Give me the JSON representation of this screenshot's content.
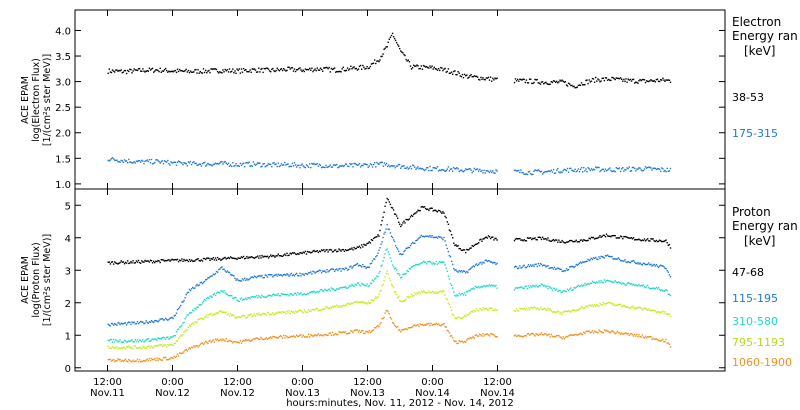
{
  "chart_data": [
    {
      "type": "scatter",
      "panel": "electron",
      "ylabel_lines": [
        "ACE EPAM",
        "log(Electron Flux)",
        "[1/(cm²s ster MeV)]"
      ],
      "legend_title_lines": [
        "Electron",
        "Energy ran",
        "[keV]"
      ],
      "ylim": [
        0.9,
        4.4
      ],
      "yticks": [
        "1.0",
        "1.5",
        "2.0",
        "2.5",
        "3.0",
        "3.5",
        "4.0"
      ],
      "ytick_values": [
        1.0,
        1.5,
        2.0,
        2.5,
        3.0,
        3.5,
        4.0
      ],
      "series": [
        {
          "name": "38-53",
          "color": "#000000",
          "x": [
            0,
            3,
            6,
            9,
            12,
            15,
            18,
            21,
            24,
            27,
            30,
            33,
            36,
            39,
            42,
            45,
            48,
            50,
            51.5,
            52.5,
            54,
            56,
            60,
            63,
            66,
            70,
            72,
            73.5,
            75,
            78,
            81,
            84,
            86,
            88,
            90,
            93,
            96,
            99,
            102,
            104
          ],
          "y": [
            3.22,
            3.21,
            3.23,
            3.24,
            3.22,
            3.21,
            3.22,
            3.23,
            3.22,
            3.24,
            3.23,
            3.25,
            3.24,
            3.26,
            3.24,
            3.27,
            3.3,
            3.45,
            3.7,
            3.95,
            3.6,
            3.3,
            3.28,
            3.22,
            3.12,
            3.07,
            3.05,
            null,
            3.03,
            3.02,
            3.0,
            3.0,
            2.92,
            3.0,
            3.05,
            3.06,
            3.03,
            3.02,
            3.04,
            3.03
          ]
        },
        {
          "name": "175-315",
          "color": "#1f78d6",
          "x": [
            0,
            3,
            6,
            9,
            12,
            15,
            18,
            21,
            24,
            27,
            30,
            33,
            36,
            39,
            42,
            45,
            48,
            51,
            54,
            57,
            60,
            63,
            66,
            70,
            72,
            73.5,
            75,
            78,
            81,
            84,
            87,
            90,
            93,
            96,
            99,
            102,
            104
          ],
          "y": [
            1.5,
            1.47,
            1.44,
            1.45,
            1.42,
            1.41,
            1.4,
            1.41,
            1.39,
            1.4,
            1.38,
            1.39,
            1.37,
            1.38,
            1.36,
            1.37,
            1.38,
            1.4,
            1.36,
            1.33,
            1.31,
            1.3,
            1.28,
            1.27,
            1.26,
            null,
            1.25,
            1.24,
            1.25,
            1.28,
            1.29,
            1.3,
            1.29,
            1.3,
            1.31,
            1.29,
            1.28
          ]
        }
      ]
    },
    {
      "type": "scatter",
      "panel": "proton",
      "ylabel_lines": [
        "ACE EPAM",
        "log(Proton Flux)",
        "[1/(cm²s ster MeV)]"
      ],
      "legend_title_lines": [
        "Proton",
        "Energy ran",
        "[keV]"
      ],
      "ylim": [
        -0.1,
        5.5
      ],
      "yticks": [
        "0",
        "1",
        "2",
        "3",
        "4",
        "5"
      ],
      "ytick_values": [
        0,
        1,
        2,
        3,
        4,
        5
      ],
      "series": [
        {
          "name": "47-68",
          "color": "#000000",
          "x": [
            0,
            6,
            12,
            18,
            24,
            30,
            36,
            40,
            44,
            46,
            48,
            50,
            51.5,
            52.5,
            54,
            56,
            58,
            62,
            64,
            66,
            68,
            70,
            72,
            73.5,
            75,
            80,
            84,
            88,
            92,
            96,
            100,
            103,
            104
          ],
          "y": [
            3.25,
            3.28,
            3.32,
            3.35,
            3.4,
            3.45,
            3.55,
            3.62,
            3.65,
            3.7,
            3.85,
            4.1,
            5.25,
            4.9,
            4.4,
            4.7,
            4.95,
            4.8,
            3.8,
            3.6,
            3.85,
            4.05,
            3.95,
            null,
            3.95,
            4.0,
            3.9,
            3.95,
            4.1,
            4.0,
            3.95,
            3.92,
            3.7
          ]
        },
        {
          "name": "115-195",
          "color": "#1f78d6",
          "x": [
            0,
            6,
            12,
            15,
            18,
            21,
            24,
            27,
            30,
            36,
            40,
            44,
            46,
            48,
            50,
            51.5,
            52.5,
            54,
            56,
            58,
            62,
            64,
            66,
            68,
            70,
            72,
            73.5,
            75,
            80,
            84,
            88,
            92,
            96,
            100,
            103,
            104
          ],
          "y": [
            1.35,
            1.4,
            1.55,
            2.4,
            2.7,
            3.1,
            2.7,
            2.8,
            2.85,
            2.9,
            3.0,
            3.05,
            3.2,
            3.1,
            3.6,
            4.4,
            4.0,
            3.5,
            3.8,
            4.1,
            4.0,
            3.0,
            2.95,
            3.2,
            3.3,
            3.2,
            null,
            3.1,
            3.2,
            3.0,
            3.3,
            3.45,
            3.3,
            3.2,
            3.1,
            2.8
          ]
        },
        {
          "name": "310-580",
          "color": "#20d8c8",
          "x": [
            0,
            6,
            12,
            15,
            18,
            21,
            24,
            27,
            30,
            36,
            40,
            44,
            46,
            48,
            50,
            51.5,
            52.5,
            54,
            56,
            58,
            62,
            64,
            66,
            68,
            70,
            72,
            73.5,
            75,
            80,
            84,
            88,
            92,
            96,
            100,
            103,
            104
          ],
          "y": [
            0.85,
            0.85,
            0.95,
            1.7,
            2.1,
            2.4,
            2.1,
            2.2,
            2.25,
            2.3,
            2.4,
            2.5,
            2.6,
            2.55,
            2.9,
            3.7,
            3.2,
            2.8,
            3.1,
            3.25,
            3.25,
            2.25,
            2.3,
            2.5,
            2.55,
            2.5,
            null,
            2.45,
            2.55,
            2.35,
            2.6,
            2.7,
            2.6,
            2.5,
            2.4,
            2.2
          ]
        },
        {
          "name": "795-1193",
          "color": "#c8e81e",
          "x": [
            0,
            6,
            12,
            15,
            18,
            21,
            24,
            27,
            30,
            36,
            40,
            44,
            46,
            48,
            50,
            51.5,
            52.5,
            54,
            56,
            58,
            62,
            64,
            66,
            68,
            70,
            72,
            73.5,
            75,
            80,
            84,
            88,
            92,
            96,
            100,
            103,
            104
          ],
          "y": [
            0.65,
            0.65,
            0.72,
            1.3,
            1.6,
            1.75,
            1.55,
            1.65,
            1.7,
            1.75,
            1.85,
            1.95,
            2.05,
            2.0,
            2.25,
            3.0,
            2.5,
            2.05,
            2.25,
            2.35,
            2.35,
            1.55,
            1.6,
            1.8,
            1.85,
            1.8,
            null,
            1.8,
            1.85,
            1.7,
            1.9,
            2.0,
            1.9,
            1.8,
            1.7,
            1.6
          ]
        },
        {
          "name": "1060-1900",
          "color": "#f0901e",
          "x": [
            0,
            6,
            12,
            15,
            18,
            21,
            24,
            27,
            30,
            36,
            40,
            44,
            46,
            48,
            50,
            51.5,
            52.5,
            54,
            56,
            58,
            62,
            64,
            66,
            68,
            70,
            72,
            73.5,
            75,
            80,
            84,
            88,
            92,
            96,
            100,
            103,
            104
          ],
          "y": [
            0.25,
            0.25,
            0.32,
            0.6,
            0.8,
            0.9,
            0.8,
            0.9,
            0.95,
            1.0,
            1.05,
            1.1,
            1.15,
            1.1,
            1.3,
            1.8,
            1.4,
            1.15,
            1.3,
            1.35,
            1.35,
            0.8,
            0.85,
            1.0,
            1.05,
            1.0,
            null,
            1.0,
            1.05,
            0.95,
            1.1,
            1.15,
            1.05,
            0.95,
            0.85,
            0.6
          ]
        }
      ]
    }
  ],
  "xaxis": {
    "range_hours": [
      -6,
      114
    ],
    "ticks": [
      {
        "h": 0,
        "time": "12:00",
        "date": "Nov.11"
      },
      {
        "h": 12,
        "time": "0:00",
        "date": "Nov.12"
      },
      {
        "h": 24,
        "time": "12:00",
        "date": "Nov.12"
      },
      {
        "h": 36,
        "time": "0:00",
        "date": "Nov.13"
      },
      {
        "h": 48,
        "time": "12:00",
        "date": "Nov.13"
      },
      {
        "h": 60,
        "time": "0:00",
        "date": "Nov.14"
      },
      {
        "h": 72,
        "time": "12:00",
        "date": "Nov.14"
      }
    ],
    "xlabel": "hours:minutes, Nov. 11, 2012 - Nov. 14, 2012"
  }
}
